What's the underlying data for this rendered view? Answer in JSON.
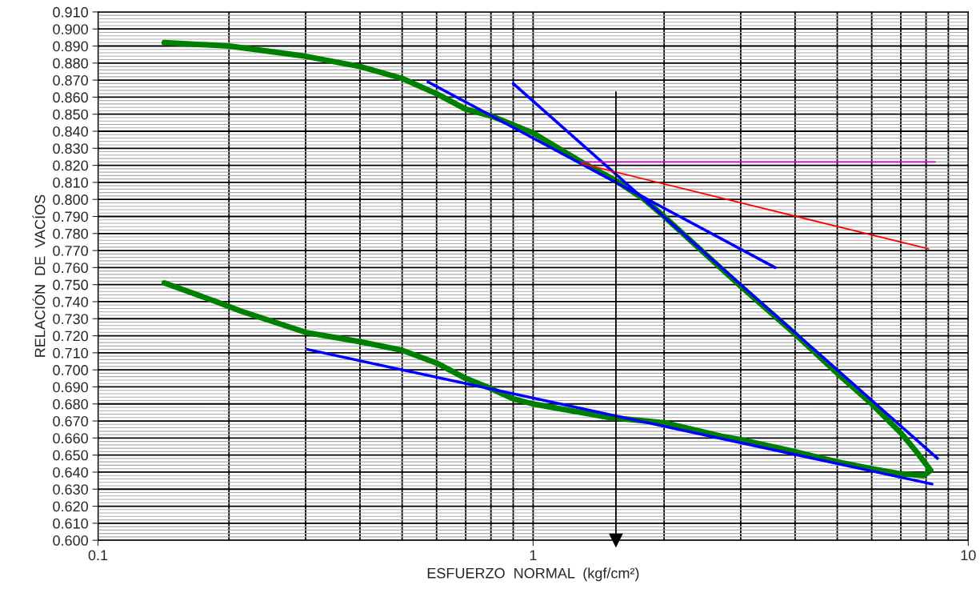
{
  "chart_data": {
    "type": "line",
    "xlabel": "ESFUERZO  NORMAL  (kgf/cm²)",
    "ylabel": "RELACIÓN  DE  VACÍOS",
    "log": "x",
    "xlim": [
      0.1,
      10
    ],
    "xticks": [
      0.1,
      1,
      10
    ],
    "ylim": [
      0.6,
      0.91
    ],
    "yticks": [
      {
        "value": 0.6,
        "label": "0.600"
      },
      {
        "value": 0.61,
        "label": "0.610"
      },
      {
        "value": 0.62,
        "label": "0.620"
      },
      {
        "value": 0.63,
        "label": "0.630"
      },
      {
        "value": 0.64,
        "label": "0.640"
      },
      {
        "value": 0.65,
        "label": "0.650"
      },
      {
        "value": 0.66,
        "label": "0.660"
      },
      {
        "value": 0.67,
        "label": "0.670"
      },
      {
        "value": 0.68,
        "label": "0.680"
      },
      {
        "value": 0.69,
        "label": "0.690"
      },
      {
        "value": 0.7,
        "label": "0.700"
      },
      {
        "value": 0.71,
        "label": "0.710"
      },
      {
        "value": 0.72,
        "label": "0.720"
      },
      {
        "value": 0.73,
        "label": "0.730"
      },
      {
        "value": 0.74,
        "label": "0.740"
      },
      {
        "value": 0.75,
        "label": "0.750"
      },
      {
        "value": 0.76,
        "label": "0.760"
      },
      {
        "value": 0.77,
        "label": "0.770"
      },
      {
        "value": 0.78,
        "label": "0.780"
      },
      {
        "value": 0.79,
        "label": "0.790"
      },
      {
        "value": 0.8,
        "label": "0.800"
      },
      {
        "value": 0.81,
        "label": "0.810"
      },
      {
        "value": 0.82,
        "label": "0.820"
      },
      {
        "value": 0.83,
        "label": "0.830"
      },
      {
        "value": 0.84,
        "label": "0.840"
      },
      {
        "value": 0.85,
        "label": "0.850"
      },
      {
        "value": 0.86,
        "label": "0.860"
      },
      {
        "value": 0.87,
        "label": "0.870"
      },
      {
        "value": 0.88,
        "label": "0.880"
      },
      {
        "value": 0.89,
        "label": "0.890"
      },
      {
        "value": 0.9,
        "label": "0.900"
      },
      {
        "value": 0.91,
        "label": "0.910"
      }
    ],
    "grid": true,
    "line_style": "solid",
    "series": [
      {
        "color": "#008000",
        "x": [
          0.142,
          0.2,
          0.3,
          0.4,
          0.5,
          0.6,
          0.7,
          0.8,
          1.0,
          1.29,
          1.55,
          1.8,
          2.0,
          3.0,
          4.0,
          5.0,
          6.0,
          7.0,
          7.6,
          8.2,
          7.9,
          7.0,
          6.0,
          5.0,
          4.0,
          3.0,
          2.71,
          2.0,
          1.5,
          1.0,
          0.9,
          0.8,
          0.7,
          0.6,
          0.5,
          0.4,
          0.3,
          0.213,
          0.187,
          0.142
        ],
        "values": [
          0.892,
          0.89,
          0.884,
          0.878,
          0.871,
          0.862,
          0.853,
          0.849,
          0.839,
          0.822,
          0.811,
          0.8,
          0.79,
          0.749,
          0.721,
          0.698,
          0.68,
          0.663,
          0.652,
          0.641,
          0.638,
          0.639,
          0.642,
          0.646,
          0.652,
          0.659,
          0.661,
          0.669,
          0.672,
          0.68,
          0.683,
          0.689,
          0.695,
          0.704,
          0.7115,
          0.7165,
          0.722,
          0.7345,
          0.74,
          0.751
        ]
      },
      {
        "color": "#0000ff",
        "x": [
          0.573,
          3.6
        ],
        "values": [
          0.869,
          0.76
        ]
      },
      {
        "color": "#0000ff",
        "x": [
          0.9,
          8.5
        ],
        "values": [
          0.868,
          0.648
        ]
      },
      {
        "color": "#0000ff",
        "x": [
          0.303,
          8.26
        ],
        "values": [
          0.712,
          0.633
        ]
      },
      {
        "color": "#ff0000",
        "x": [
          1.29,
          8.1
        ],
        "values": [
          0.821,
          0.771
        ]
      },
      {
        "color": "#cc00cc",
        "x": [
          1.29,
          8.4
        ],
        "values": [
          0.822,
          0.822
        ]
      },
      {
        "color": "#000000",
        "x": [
          1.55,
          1.55
        ],
        "values": [
          0.863,
          0.6
        ],
        "marker": "triangle"
      }
    ]
  }
}
